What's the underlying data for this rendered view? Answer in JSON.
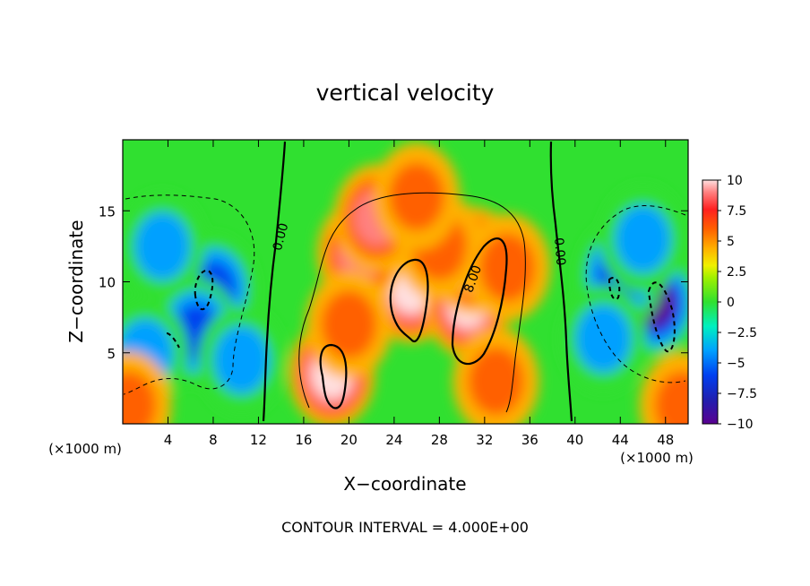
{
  "chart_data": {
    "type": "heatmap",
    "title": "vertical velocity",
    "xlabel": "X−coordinate",
    "ylabel": "Z−coordinate",
    "x_unit_left": "(×1000 m)",
    "x_unit_right": "(×1000 m)",
    "footer": "CONTOUR INTERVAL = 4.000E+00",
    "xlim": [
      0,
      50
    ],
    "ylim": [
      0,
      20
    ],
    "x_ticks": [
      4,
      8,
      12,
      16,
      20,
      24,
      28,
      32,
      36,
      40,
      44,
      48
    ],
    "y_ticks": [
      5,
      10,
      15
    ],
    "colorbar": {
      "range": [
        -10,
        10
      ],
      "tick_values": [
        10,
        7.5,
        5,
        2.5,
        0,
        -2.5,
        -5,
        -7.5,
        -10
      ],
      "tick_labels": [
        "10",
        "7.5",
        "5",
        "2.5",
        "0",
        "−2.5",
        "−5",
        "−7.5",
        "−10"
      ],
      "colors": [
        "#5a0090",
        "#2020b0",
        "#0040f0",
        "#00a0ff",
        "#00f0c0",
        "#30e030",
        "#a0f000",
        "#f0f000",
        "#ffb000",
        "#ff6000",
        "#ff2020",
        "#ff8080",
        "#ffe0e0"
      ]
    },
    "contour_labels": [
      {
        "text": "0.00",
        "x": 14.3,
        "y": 13.1,
        "angle": -75
      },
      {
        "text": "8.00",
        "x": 31.3,
        "y": 10.1,
        "angle": -70
      },
      {
        "text": "0.00",
        "x": 38.3,
        "y": 12.1,
        "angle": 85
      }
    ],
    "features": [
      {
        "x": 8.0,
        "z": 9.5,
        "w": -8
      },
      {
        "x": 6.5,
        "z": 6.5,
        "w": -7
      },
      {
        "x": 3.5,
        "z": 12.5,
        "w": -5
      },
      {
        "x": 10.5,
        "z": 4.5,
        "w": -5
      },
      {
        "x": 2.0,
        "z": 5.0,
        "w": -4
      },
      {
        "x": 47.0,
        "z": 8.5,
        "w": -9.5
      },
      {
        "x": 44.0,
        "z": 10.5,
        "w": -7
      },
      {
        "x": 46.0,
        "z": 13.0,
        "w": -5
      },
      {
        "x": 42.5,
        "z": 6.0,
        "w": -4
      },
      {
        "x": 25.5,
        "z": 9.5,
        "w": 10.5
      },
      {
        "x": 30.5,
        "z": 8.5,
        "w": 11
      },
      {
        "x": 31.0,
        "z": 11.5,
        "w": 9
      },
      {
        "x": 18.5,
        "z": 3.5,
        "w": 9.5
      },
      {
        "x": 21.0,
        "z": 12.0,
        "w": 8
      },
      {
        "x": 22.5,
        "z": 14.5,
        "w": 7
      },
      {
        "x": 28.0,
        "z": 12.5,
        "w": 6
      },
      {
        "x": 34.0,
        "z": 11.0,
        "w": 6
      },
      {
        "x": 26.0,
        "z": 16.0,
        "w": 4
      },
      {
        "x": 20.0,
        "z": 7.0,
        "w": 5
      },
      {
        "x": 33.0,
        "z": 3.0,
        "w": 4
      },
      {
        "x": 0.5,
        "z": 1.3,
        "w": 6
      },
      {
        "x": 49.5,
        "z": 1.3,
        "w": 6
      }
    ]
  }
}
